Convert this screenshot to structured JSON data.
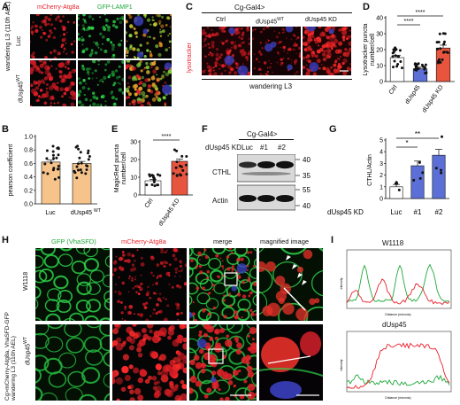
{
  "panels": {
    "A": {
      "letter": "A",
      "ch1": "mCherry-Atg8a",
      "ch2": "GFP-LAMP1",
      "rows": [
        "Luc",
        "dUsp45"
      ],
      "row2_sup": "WT",
      "side": "wandering L3 (110h AEL)"
    },
    "B": {
      "letter": "B",
      "ylabel": "pearson coefficient",
      "yticks": [
        "0.0",
        "0.2",
        "0.4",
        "0.6",
        "0.8",
        "1.0"
      ],
      "xcat1": "Luc",
      "xcat2": "dUsp45",
      "xcat2_sup": "WT"
    },
    "C": {
      "letter": "C",
      "header": "Cg-Gal4>",
      "cols": [
        "Ctrl",
        "dUsp45",
        "dUsp45 KD"
      ],
      "col2_sup": "WT",
      "side": "lysotracker",
      "bottom": "wandering L3"
    },
    "D": {
      "letter": "D",
      "ylabel1": "Lysotracker puncta",
      "ylabel2": "number/cell",
      "yticks": [
        "0",
        "10",
        "20",
        "30",
        "40"
      ],
      "cats": [
        "Ctrl",
        "dUsp45",
        "dUsp45 KD"
      ],
      "cat2_sup": "WT",
      "sig": [
        "****",
        "****"
      ]
    },
    "E": {
      "letter": "E",
      "ylabel1": "MagicRed puncta",
      "ylabel2": "number/cell",
      "yticks": [
        "0",
        "10",
        "20",
        "30"
      ],
      "cats": [
        "Ctrl",
        "dUsp45 KD"
      ],
      "sig": "****"
    },
    "F": {
      "letter": "F",
      "header": "Cg-Gal4>",
      "rowlabel": "dUsp45 KD",
      "lanes": [
        "Luc",
        "#1",
        "#2"
      ],
      "bands": [
        "CTHL",
        "Actin"
      ],
      "mw": [
        "40",
        "35",
        "55",
        "40"
      ]
    },
    "G": {
      "letter": "G",
      "ylabel": "CTHL/Actin",
      "yticks": [
        "0",
        "1",
        "2",
        "3",
        "4",
        "5"
      ],
      "rowlabel": "dUsp45 KD",
      "cats": [
        "Luc",
        "#1",
        "#2"
      ],
      "sig": [
        "*",
        "**"
      ]
    },
    "H": {
      "letter": "H",
      "cols": [
        "GFP (VhaSFD)",
        "mCherry-Atg8a",
        "merge",
        "magnified image"
      ],
      "rows": [
        "W1118",
        "dUsp45"
      ],
      "row2_sup": "WT",
      "side1": "Cg>mCherry-Atg8a, VhaSFD-GFP",
      "side2": "wandering L3 (110h AEL)"
    },
    "I": {
      "letter": "I",
      "title1": "W1118",
      "title2": "dUsp45",
      "xlabel": "Distance (microns)",
      "ylabel": "Intensity"
    }
  },
  "colors": {
    "red": "#e8202a",
    "green": "#1fa83a",
    "bar": "#f6c38a",
    "blue": "#5b6fd6",
    "kd": "#e8553f"
  },
  "chart_data": [
    {
      "type": "bar",
      "title": "",
      "ylabel": "pearson coefficient",
      "categories": [
        "Luc",
        "dUsp45WT"
      ],
      "values": [
        0.62,
        0.6
      ],
      "ylim": [
        0,
        1.0
      ]
    },
    {
      "type": "bar",
      "title": "",
      "ylabel": "Lysotracker puncta number/cell",
      "categories": [
        "Ctrl",
        "dUsp45WT",
        "dUsp45 KD"
      ],
      "values": [
        15,
        8,
        21
      ],
      "ylim": [
        0,
        40
      ]
    },
    {
      "type": "bar",
      "title": "",
      "ylabel": "MagicRed puncta number/cell",
      "categories": [
        "Ctrl",
        "dUsp45 KD"
      ],
      "values": [
        8,
        19
      ],
      "ylim": [
        0,
        30
      ]
    },
    {
      "type": "bar",
      "title": "",
      "ylabel": "CTHL/Actin",
      "categories": [
        "Luc",
        "#1",
        "#2"
      ],
      "values": [
        1.0,
        2.8,
        3.7
      ],
      "ylim": [
        0,
        5
      ]
    }
  ]
}
